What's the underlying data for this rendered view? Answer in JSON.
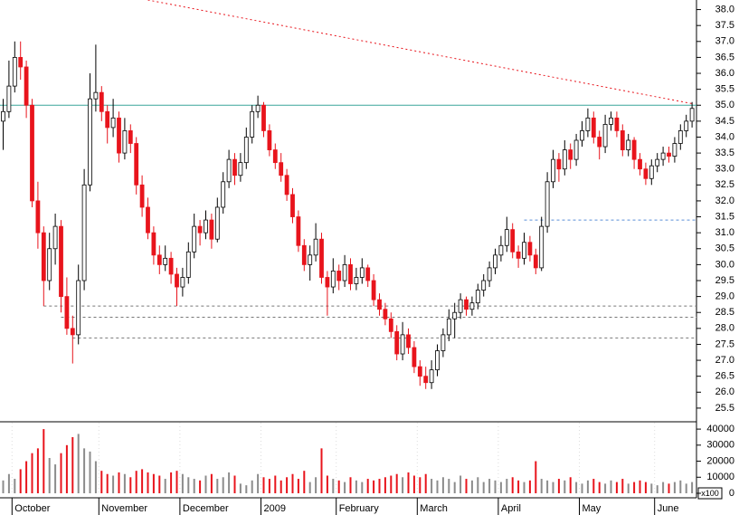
{
  "chart_data": {
    "type": "candlestick",
    "up_color": "#ffffff",
    "down_color": "#e8141c",
    "volume_up_color": "#8c8c8c",
    "volume_down_color": "#e8141c",
    "ylim": [
      25.1,
      38.3
    ],
    "yticks": [
      25.5,
      {
        "value": 26,
        "label": "26.0"
      },
      26.5,
      {
        "value": 27,
        "label": "27.0"
      },
      27.5,
      {
        "value": 28,
        "label": "28.0"
      },
      28.5,
      {
        "value": 29,
        "label": "29.0"
      },
      29.5,
      {
        "value": 30,
        "label": "30.0"
      },
      30.5,
      {
        "value": 31,
        "label": "31.0"
      },
      31.5,
      {
        "value": 32,
        "label": "32.0"
      },
      32.5,
      {
        "value": 33,
        "label": "33.0"
      },
      33.5,
      {
        "value": 34,
        "label": "34.0"
      },
      34.5,
      {
        "value": 35,
        "label": "35.0"
      },
      35.5,
      {
        "value": 36,
        "label": "36.0"
      },
      36.5,
      {
        "value": 37,
        "label": "37.0"
      },
      37.5,
      {
        "value": 38,
        "label": "38.0"
      }
    ],
    "volume_ylim": [
      0,
      44000
    ],
    "volume_yticks": [
      0,
      10000,
      20000,
      30000,
      40000
    ],
    "volume_unit": "x100",
    "xticks": [
      {
        "value": 2,
        "label": "October"
      },
      {
        "value": 17,
        "label": "November"
      },
      {
        "value": 31,
        "label": "December"
      },
      {
        "value": 45,
        "label": "2009"
      },
      {
        "value": 58,
        "label": "February"
      },
      {
        "value": 72,
        "label": "March"
      },
      {
        "value": 86,
        "label": "April"
      },
      {
        "value": 100,
        "label": "May"
      },
      {
        "value": 113,
        "label": "June"
      }
    ],
    "resistance": {
      "y": 35.0,
      "color": "#3aa69a"
    },
    "support_lines": [
      {
        "start": 90,
        "y": 31.4,
        "color": "#5b8fd6"
      },
      {
        "start": 7,
        "y": 28.7,
        "color": "#777777"
      },
      {
        "start": 10,
        "y": 28.35,
        "color": "#777777"
      },
      {
        "start": 12,
        "y": 27.7,
        "color": "#777777"
      }
    ],
    "trendline": {
      "x": [
        25,
        119
      ],
      "y": [
        38.3,
        35.05
      ],
      "color": "#e8141c"
    },
    "candles": [
      [
        34.5,
        35.2,
        33.6,
        34.8
      ],
      [
        34.8,
        36.4,
        34.6,
        35.6
      ],
      [
        35.6,
        37.0,
        35.4,
        36.5
      ],
      [
        36.5,
        37.0,
        35.8,
        36.2
      ],
      [
        36.2,
        36.4,
        34.6,
        35.0
      ],
      [
        35.0,
        35.2,
        31.8,
        32.0
      ],
      [
        32.0,
        32.6,
        30.5,
        31.0
      ],
      [
        31.0,
        31.2,
        28.7,
        29.5
      ],
      [
        29.5,
        31.0,
        29.2,
        30.5
      ],
      [
        30.5,
        31.6,
        30.0,
        31.2
      ],
      [
        31.2,
        31.4,
        28.5,
        29.0
      ],
      [
        29.0,
        29.6,
        27.8,
        28.0
      ],
      [
        28.0,
        28.4,
        26.9,
        27.8
      ],
      [
        27.8,
        30.0,
        27.5,
        29.5
      ],
      [
        29.5,
        33.0,
        29.2,
        32.5
      ],
      [
        32.5,
        36.0,
        32.3,
        35.2
      ],
      [
        35.2,
        36.9,
        34.8,
        35.4
      ],
      [
        35.4,
        35.6,
        34.5,
        34.8
      ],
      [
        34.8,
        35.0,
        33.8,
        34.3
      ],
      [
        34.3,
        35.2,
        34.0,
        34.6
      ],
      [
        34.6,
        34.8,
        33.2,
        33.5
      ],
      [
        33.5,
        34.6,
        33.3,
        34.2
      ],
      [
        34.2,
        34.4,
        33.5,
        33.8
      ],
      [
        33.8,
        34.0,
        32.2,
        32.5
      ],
      [
        32.5,
        32.8,
        31.5,
        31.8
      ],
      [
        31.8,
        32.1,
        30.8,
        31.0
      ],
      [
        31.0,
        31.2,
        30.0,
        30.3
      ],
      [
        30.3,
        30.6,
        29.7,
        30.0
      ],
      [
        30.0,
        30.6,
        29.8,
        30.2
      ],
      [
        30.2,
        30.4,
        29.4,
        29.7
      ],
      [
        29.7,
        29.9,
        28.7,
        29.3
      ],
      [
        29.3,
        29.9,
        29.0,
        29.6
      ],
      [
        29.6,
        30.7,
        29.4,
        30.4
      ],
      [
        30.4,
        31.6,
        30.2,
        31.2
      ],
      [
        31.2,
        31.4,
        30.6,
        31.0
      ],
      [
        31.0,
        31.7,
        30.8,
        31.4
      ],
      [
        31.4,
        31.6,
        30.5,
        30.8
      ],
      [
        30.8,
        32.1,
        30.7,
        31.8
      ],
      [
        31.8,
        32.9,
        31.6,
        32.6
      ],
      [
        32.6,
        33.6,
        32.4,
        33.3
      ],
      [
        33.3,
        33.5,
        32.5,
        32.8
      ],
      [
        32.8,
        33.5,
        32.6,
        33.2
      ],
      [
        33.2,
        34.3,
        33.0,
        34.0
      ],
      [
        34.0,
        35.0,
        33.8,
        34.8
      ],
      [
        34.8,
        35.3,
        34.6,
        35.0
      ],
      [
        35.0,
        35.1,
        34.0,
        34.2
      ],
      [
        34.2,
        34.4,
        33.4,
        33.6
      ],
      [
        33.6,
        33.8,
        33.0,
        33.2
      ],
      [
        33.2,
        33.5,
        32.6,
        32.8
      ],
      [
        32.8,
        33.0,
        32.0,
        32.2
      ],
      [
        32.2,
        32.4,
        31.3,
        31.5
      ],
      [
        31.5,
        31.7,
        30.4,
        30.6
      ],
      [
        30.6,
        30.8,
        29.8,
        30.0
      ],
      [
        30.0,
        30.6,
        29.5,
        30.3
      ],
      [
        30.3,
        31.3,
        30.1,
        30.8
      ],
      [
        30.8,
        31.0,
        29.4,
        29.6
      ],
      [
        29.6,
        29.8,
        28.4,
        29.3
      ],
      [
        29.3,
        30.2,
        29.1,
        29.8
      ],
      [
        29.8,
        30.0,
        29.2,
        29.5
      ],
      [
        29.5,
        30.3,
        29.3,
        30.0
      ],
      [
        30.0,
        30.2,
        29.2,
        29.4
      ],
      [
        29.4,
        29.9,
        29.2,
        29.6
      ],
      [
        29.6,
        30.2,
        29.4,
        29.9
      ],
      [
        29.9,
        30.0,
        29.3,
        29.5
      ],
      [
        29.5,
        29.7,
        28.7,
        28.9
      ],
      [
        28.9,
        29.1,
        28.4,
        28.6
      ],
      [
        28.6,
        28.8,
        28.1,
        28.3
      ],
      [
        28.3,
        28.5,
        27.7,
        27.9
      ],
      [
        27.9,
        28.1,
        27.0,
        27.2
      ],
      [
        27.2,
        28.2,
        27.0,
        27.8
      ],
      [
        27.8,
        28.0,
        27.2,
        27.4
      ],
      [
        27.4,
        27.6,
        26.6,
        26.8
      ],
      [
        26.8,
        27.0,
        26.2,
        26.5
      ],
      [
        26.5,
        26.8,
        26.1,
        26.3
      ],
      [
        26.3,
        27.0,
        26.1,
        26.7
      ],
      [
        26.7,
        27.5,
        26.5,
        27.3
      ],
      [
        27.3,
        28.0,
        27.1,
        27.8
      ],
      [
        27.8,
        28.6,
        27.6,
        28.3
      ],
      [
        28.3,
        28.8,
        27.7,
        28.5
      ],
      [
        28.5,
        29.1,
        28.3,
        28.9
      ],
      [
        28.9,
        29.0,
        28.4,
        28.6
      ],
      [
        28.6,
        29.0,
        28.4,
        28.8
      ],
      [
        28.8,
        29.4,
        28.6,
        29.2
      ],
      [
        29.2,
        29.7,
        29.0,
        29.5
      ],
      [
        29.5,
        30.1,
        29.3,
        29.9
      ],
      [
        29.9,
        30.5,
        29.7,
        30.3
      ],
      [
        30.3,
        30.9,
        30.1,
        30.6
      ],
      [
        30.6,
        31.5,
        30.4,
        31.1
      ],
      [
        31.1,
        31.3,
        30.2,
        30.4
      ],
      [
        30.4,
        30.6,
        29.9,
        30.2
      ],
      [
        30.2,
        31.0,
        30.0,
        30.7
      ],
      [
        30.7,
        30.9,
        30.1,
        30.3
      ],
      [
        30.3,
        30.5,
        29.7,
        29.9
      ],
      [
        29.9,
        31.5,
        29.8,
        31.2
      ],
      [
        31.2,
        32.9,
        31.0,
        32.6
      ],
      [
        32.6,
        33.6,
        32.4,
        33.3
      ],
      [
        33.3,
        33.5,
        32.6,
        33.0
      ],
      [
        33.0,
        33.9,
        32.8,
        33.6
      ],
      [
        33.6,
        33.8,
        33.0,
        33.3
      ],
      [
        33.3,
        34.1,
        33.1,
        33.9
      ],
      [
        33.9,
        34.5,
        33.7,
        34.2
      ],
      [
        34.2,
        34.9,
        34.0,
        34.6
      ],
      [
        34.6,
        34.8,
        33.8,
        34.0
      ],
      [
        34.0,
        34.2,
        33.3,
        33.7
      ],
      [
        33.7,
        34.7,
        33.5,
        34.4
      ],
      [
        34.4,
        34.8,
        34.2,
        34.6
      ],
      [
        34.6,
        34.8,
        34.0,
        34.2
      ],
      [
        34.2,
        34.4,
        33.4,
        33.6
      ],
      [
        33.6,
        34.1,
        33.4,
        33.9
      ],
      [
        33.9,
        34.0,
        33.0,
        33.3
      ],
      [
        33.3,
        33.5,
        32.8,
        33.0
      ],
      [
        33.0,
        33.2,
        32.5,
        32.7
      ],
      [
        32.7,
        33.3,
        32.5,
        33.1
      ],
      [
        33.1,
        33.5,
        32.9,
        33.3
      ],
      [
        33.3,
        33.7,
        33.1,
        33.5
      ],
      [
        33.5,
        33.7,
        33.2,
        33.4
      ],
      [
        33.4,
        34.0,
        33.2,
        33.8
      ],
      [
        33.8,
        34.4,
        33.6,
        34.2
      ],
      [
        34.2,
        34.7,
        34.0,
        34.5
      ],
      [
        34.5,
        35.1,
        34.3,
        34.9
      ]
    ],
    "volumes": [
      8000,
      12000,
      9000,
      15000,
      20000,
      25000,
      28000,
      40000,
      22000,
      18000,
      25000,
      30000,
      35000,
      37000,
      28000,
      26000,
      20000,
      14000,
      12000,
      11000,
      13000,
      12000,
      10000,
      14000,
      15000,
      13000,
      12000,
      11000,
      9000,
      13000,
      14000,
      12000,
      10000,
      9000,
      8000,
      11000,
      12000,
      9000,
      10000,
      13000,
      11000,
      6000,
      5000,
      8000,
      12000,
      10000,
      9000,
      11000,
      8000,
      10000,
      12000,
      9000,
      14000,
      7000,
      10000,
      28000,
      11000,
      9000,
      8000,
      7000,
      10000,
      8000,
      7000,
      9000,
      8000,
      9000,
      10000,
      11000,
      12000,
      10000,
      13000,
      11000,
      10000,
      12000,
      9000,
      8000,
      10000,
      9000,
      7000,
      11000,
      9000,
      8000,
      10000,
      7000,
      9000,
      8000,
      7000,
      9000,
      10000,
      8000,
      7000,
      8000,
      20000,
      9000,
      8000,
      7000,
      9000,
      8000,
      10000,
      7000,
      6000,
      8000,
      9000,
      7000,
      6000,
      8000,
      7000,
      9000,
      6000,
      7000,
      8000,
      7000,
      6000,
      5000,
      7000,
      6000,
      7000,
      8000,
      6000,
      7000
    ]
  }
}
